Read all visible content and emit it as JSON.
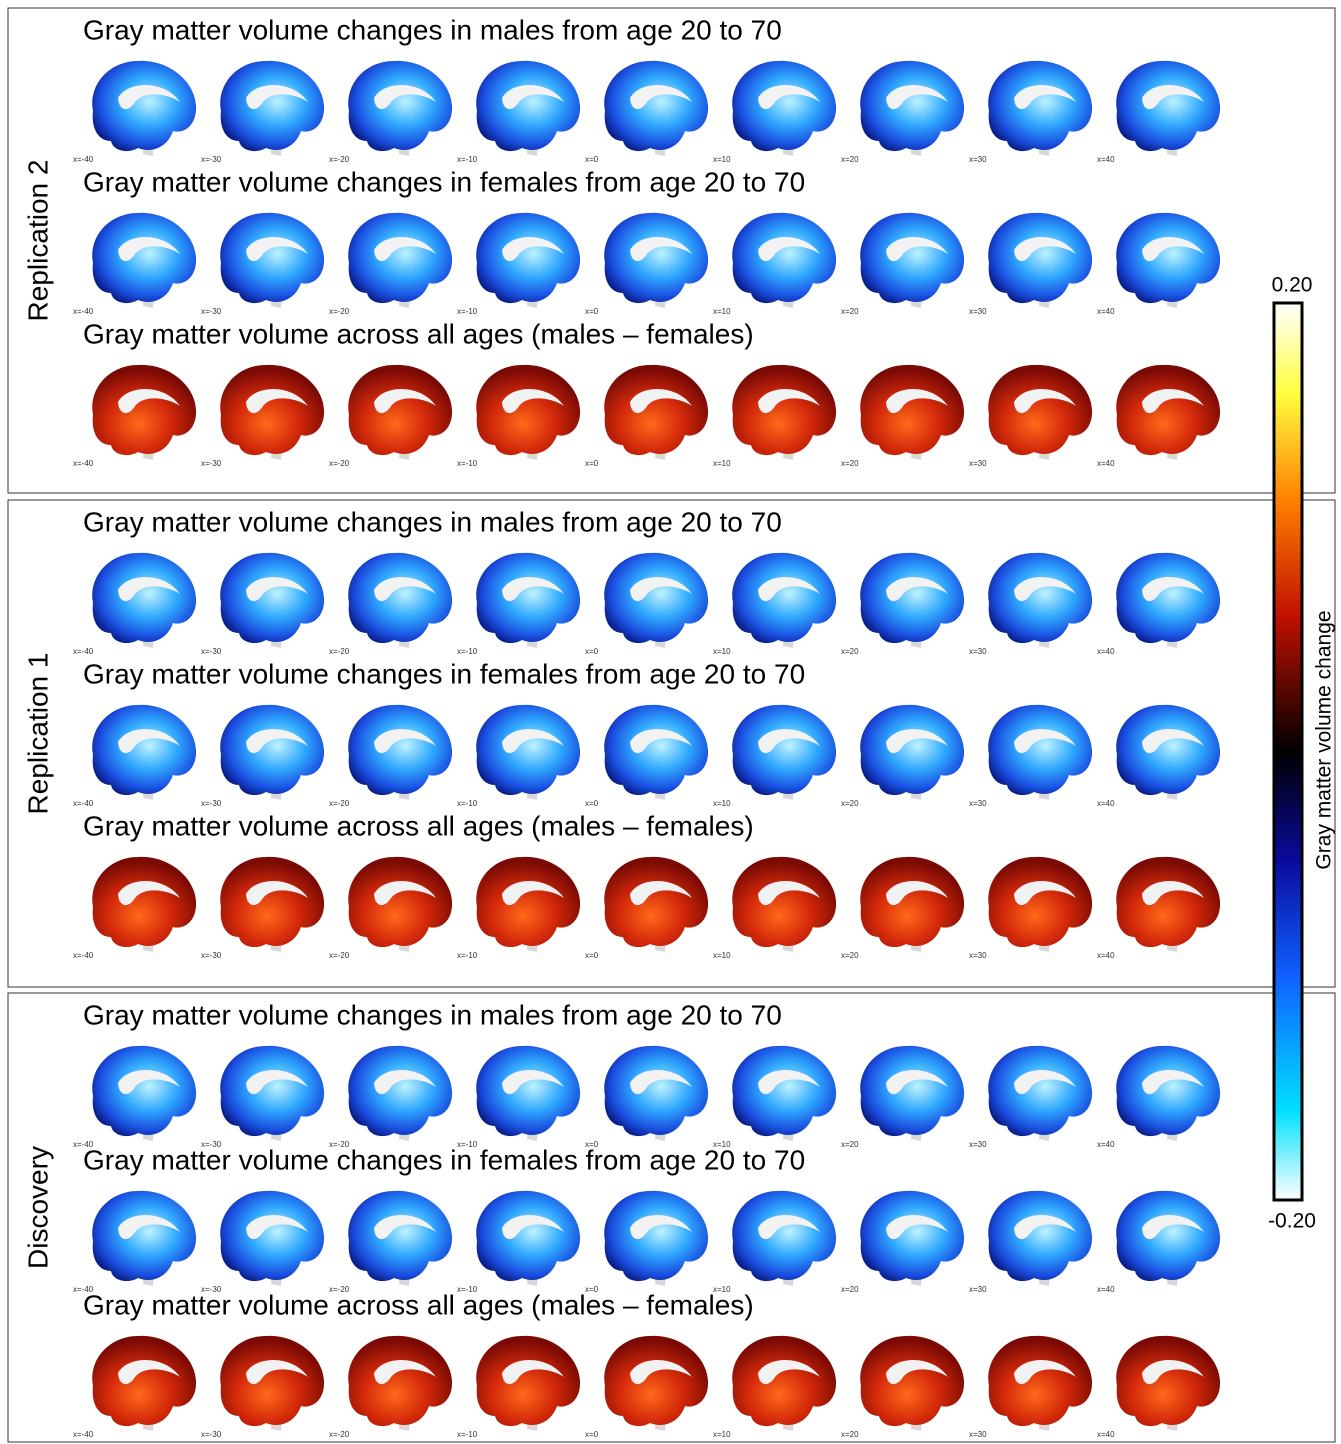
{
  "panels": [
    {
      "label": "Replication 2",
      "rows": [
        {
          "title": "Gray matter volume changes in males from age 20 to 70",
          "slices": [
            "x=-40",
            "x=-30",
            "x=-20",
            "x=-10",
            "x=0",
            "x=10",
            "x=20",
            "x=30",
            "x=40"
          ]
        },
        {
          "title": "Gray matter volume changes in females from age 20 to 70",
          "slices": [
            "x=-40",
            "x=-30",
            "x=-20",
            "x=-10",
            "x=0",
            "x=10",
            "x=20",
            "x=30",
            "x=40"
          ]
        },
        {
          "title": "Gray matter volume across all ages (males – females)",
          "slices": [
            "x=-40",
            "x=-30",
            "x=-20",
            "x=-10",
            "x=0",
            "x=10",
            "x=20",
            "x=30",
            "x=40"
          ]
        }
      ]
    },
    {
      "label": "Replication 1",
      "rows": [
        {
          "title": "Gray matter volume changes in males from age 20 to 70",
          "slices": [
            "x=-40",
            "x=-30",
            "x=-20",
            "x=-10",
            "x=0",
            "x=10",
            "x=20",
            "x=30",
            "x=40"
          ]
        },
        {
          "title": "Gray matter volume changes in females from age 20 to 70",
          "slices": [
            "x=-40",
            "x=-30",
            "x=-20",
            "x=-10",
            "x=0",
            "x=10",
            "x=20",
            "x=30",
            "x=40"
          ]
        },
        {
          "title": "Gray matter volume across all ages (males – females)",
          "slices": [
            "x=-40",
            "x=-30",
            "x=-20",
            "x=-10",
            "x=0",
            "x=10",
            "x=20",
            "x=30",
            "x=40"
          ]
        }
      ]
    },
    {
      "label": "Discovery",
      "rows": [
        {
          "title": "Gray matter volume changes in males from age 20 to 70",
          "slices": [
            "x=-40",
            "x=-30",
            "x=-20",
            "x=-10",
            "x=0",
            "x=10",
            "x=20",
            "x=30",
            "x=40"
          ]
        },
        {
          "title": "Gray matter volume changes in females from age 20 to 70",
          "slices": [
            "x=-40",
            "x=-30",
            "x=-20",
            "x=-10",
            "x=0",
            "x=10",
            "x=20",
            "x=30",
            "x=40"
          ]
        },
        {
          "title": "Gray matter volume across all ages (males – females)",
          "slices": [
            "x=-40",
            "x=-30",
            "x=-20",
            "x=-10",
            "x=0",
            "x=10",
            "x=20",
            "x=30",
            "x=40"
          ]
        }
      ]
    }
  ],
  "colorbar": {
    "label": "Gray matter volume change",
    "max": {
      "value": 0.2,
      "label": "0.20"
    },
    "min": {
      "value": -0.2,
      "label": "-0.20"
    }
  }
}
